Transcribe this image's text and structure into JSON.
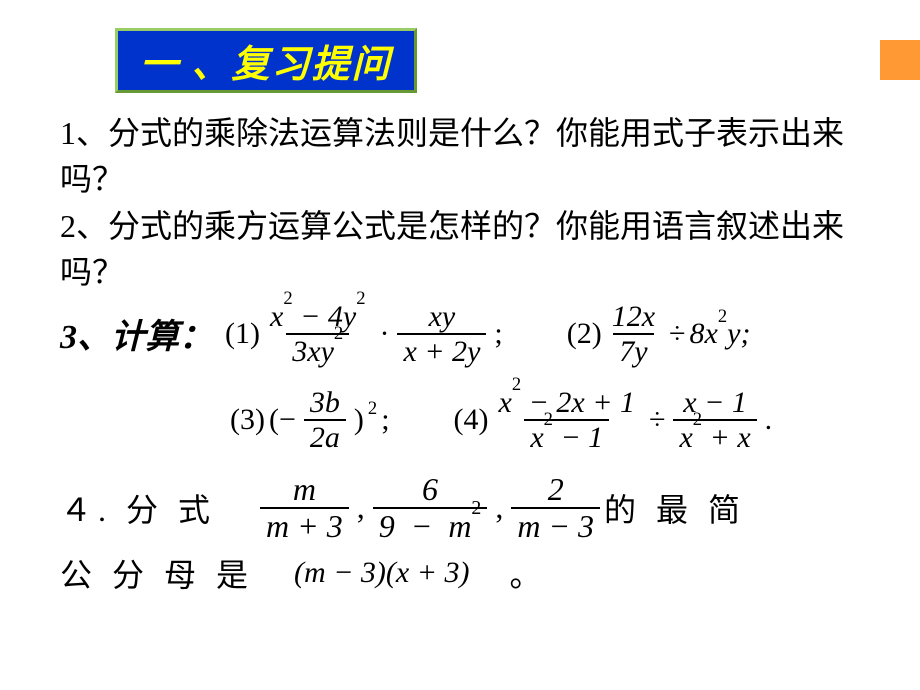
{
  "accent_color": "#ff9933",
  "title": {
    "text": "一 、复习提问",
    "bg_color": "#0033cc",
    "text_color": "#ffff00",
    "border_light": "#99cc66",
    "border_dark": "#669933"
  },
  "q1": "1、分式的乘除法运算法则是什么？你能用式子表示出来吗？",
  "q2": "2、分式的乘方运算公式是怎样的？你能用语言叙述出来吗？",
  "q3_label": "3、计算：",
  "p1": {
    "tag": "(1)",
    "num1": "x² − 4y²",
    "den1": "3xy²",
    "num2": "xy",
    "den2": "x + 2y"
  },
  "p2": {
    "tag": "(2)",
    "num": "12x",
    "den": "7y",
    "rhs": "8x²y;"
  },
  "p3": {
    "tag": "(3)",
    "inner_num": "3b",
    "inner_den": "2a"
  },
  "p4": {
    "tag": "(4)",
    "num1": "x² − 2x + 1",
    "den1": "x² − 1",
    "num2": "x − 1",
    "den2": "x² + x"
  },
  "q4": {
    "prefix": "４. 分 式",
    "f1_num": "m",
    "f1_den": "m  +  3",
    "f2_num": "6",
    "f2_den": "9  −  m ²",
    "f3_num": "2",
    "f3_den": "m  −  3",
    "suffix": "的 最 简",
    "line2_prefix": "公 分 母 是",
    "answer": "(m − 3)(x + 3)",
    "line2_suffix": "。"
  }
}
